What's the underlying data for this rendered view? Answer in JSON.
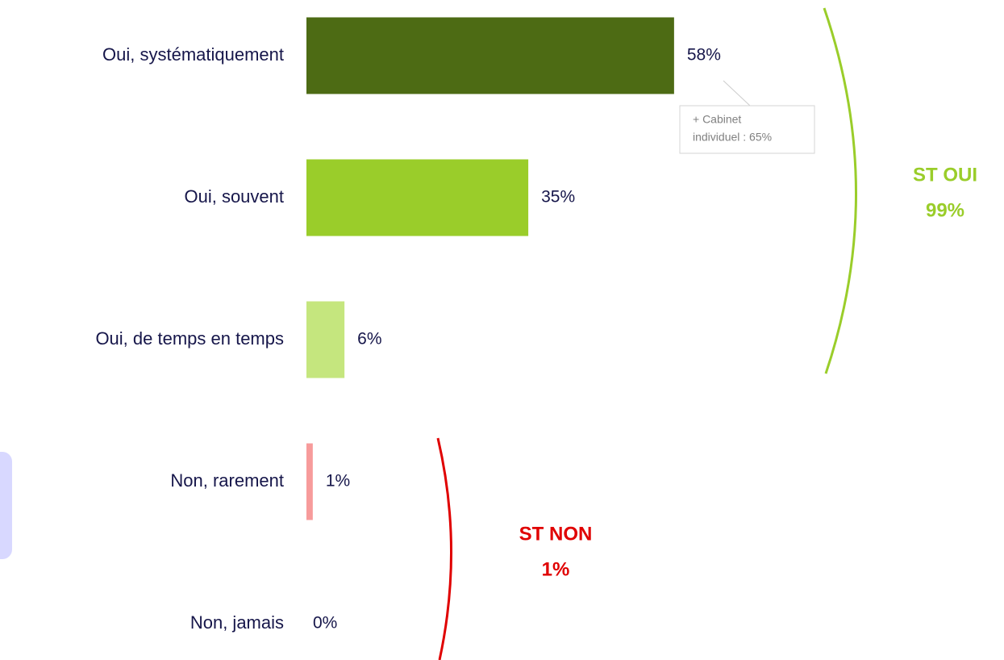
{
  "chart_data": {
    "type": "bar",
    "orientation": "horizontal",
    "categories": [
      "Oui, systématiquement",
      "Oui, souvent",
      "Oui, de temps en temps",
      "Non, rarement",
      "Non, jamais"
    ],
    "values": [
      58,
      35,
      6,
      1,
      0
    ],
    "value_labels": [
      "58%",
      "35%",
      "6%",
      "1%",
      "0%"
    ],
    "colors": [
      "#4d6b14",
      "#9acd2a",
      "#c5e67e",
      "#f79b9b",
      "#f79b9b"
    ],
    "annotations": [
      {
        "lines": [
          "+ Cabinet",
          "individuel : 65%"
        ],
        "color": "#808080"
      },
      {
        "lines": [
          "ST OUI",
          "99%"
        ],
        "color": "#9acd2a"
      },
      {
        "lines": [
          "ST NON",
          "1%"
        ],
        "color": "#e00000"
      }
    ]
  }
}
